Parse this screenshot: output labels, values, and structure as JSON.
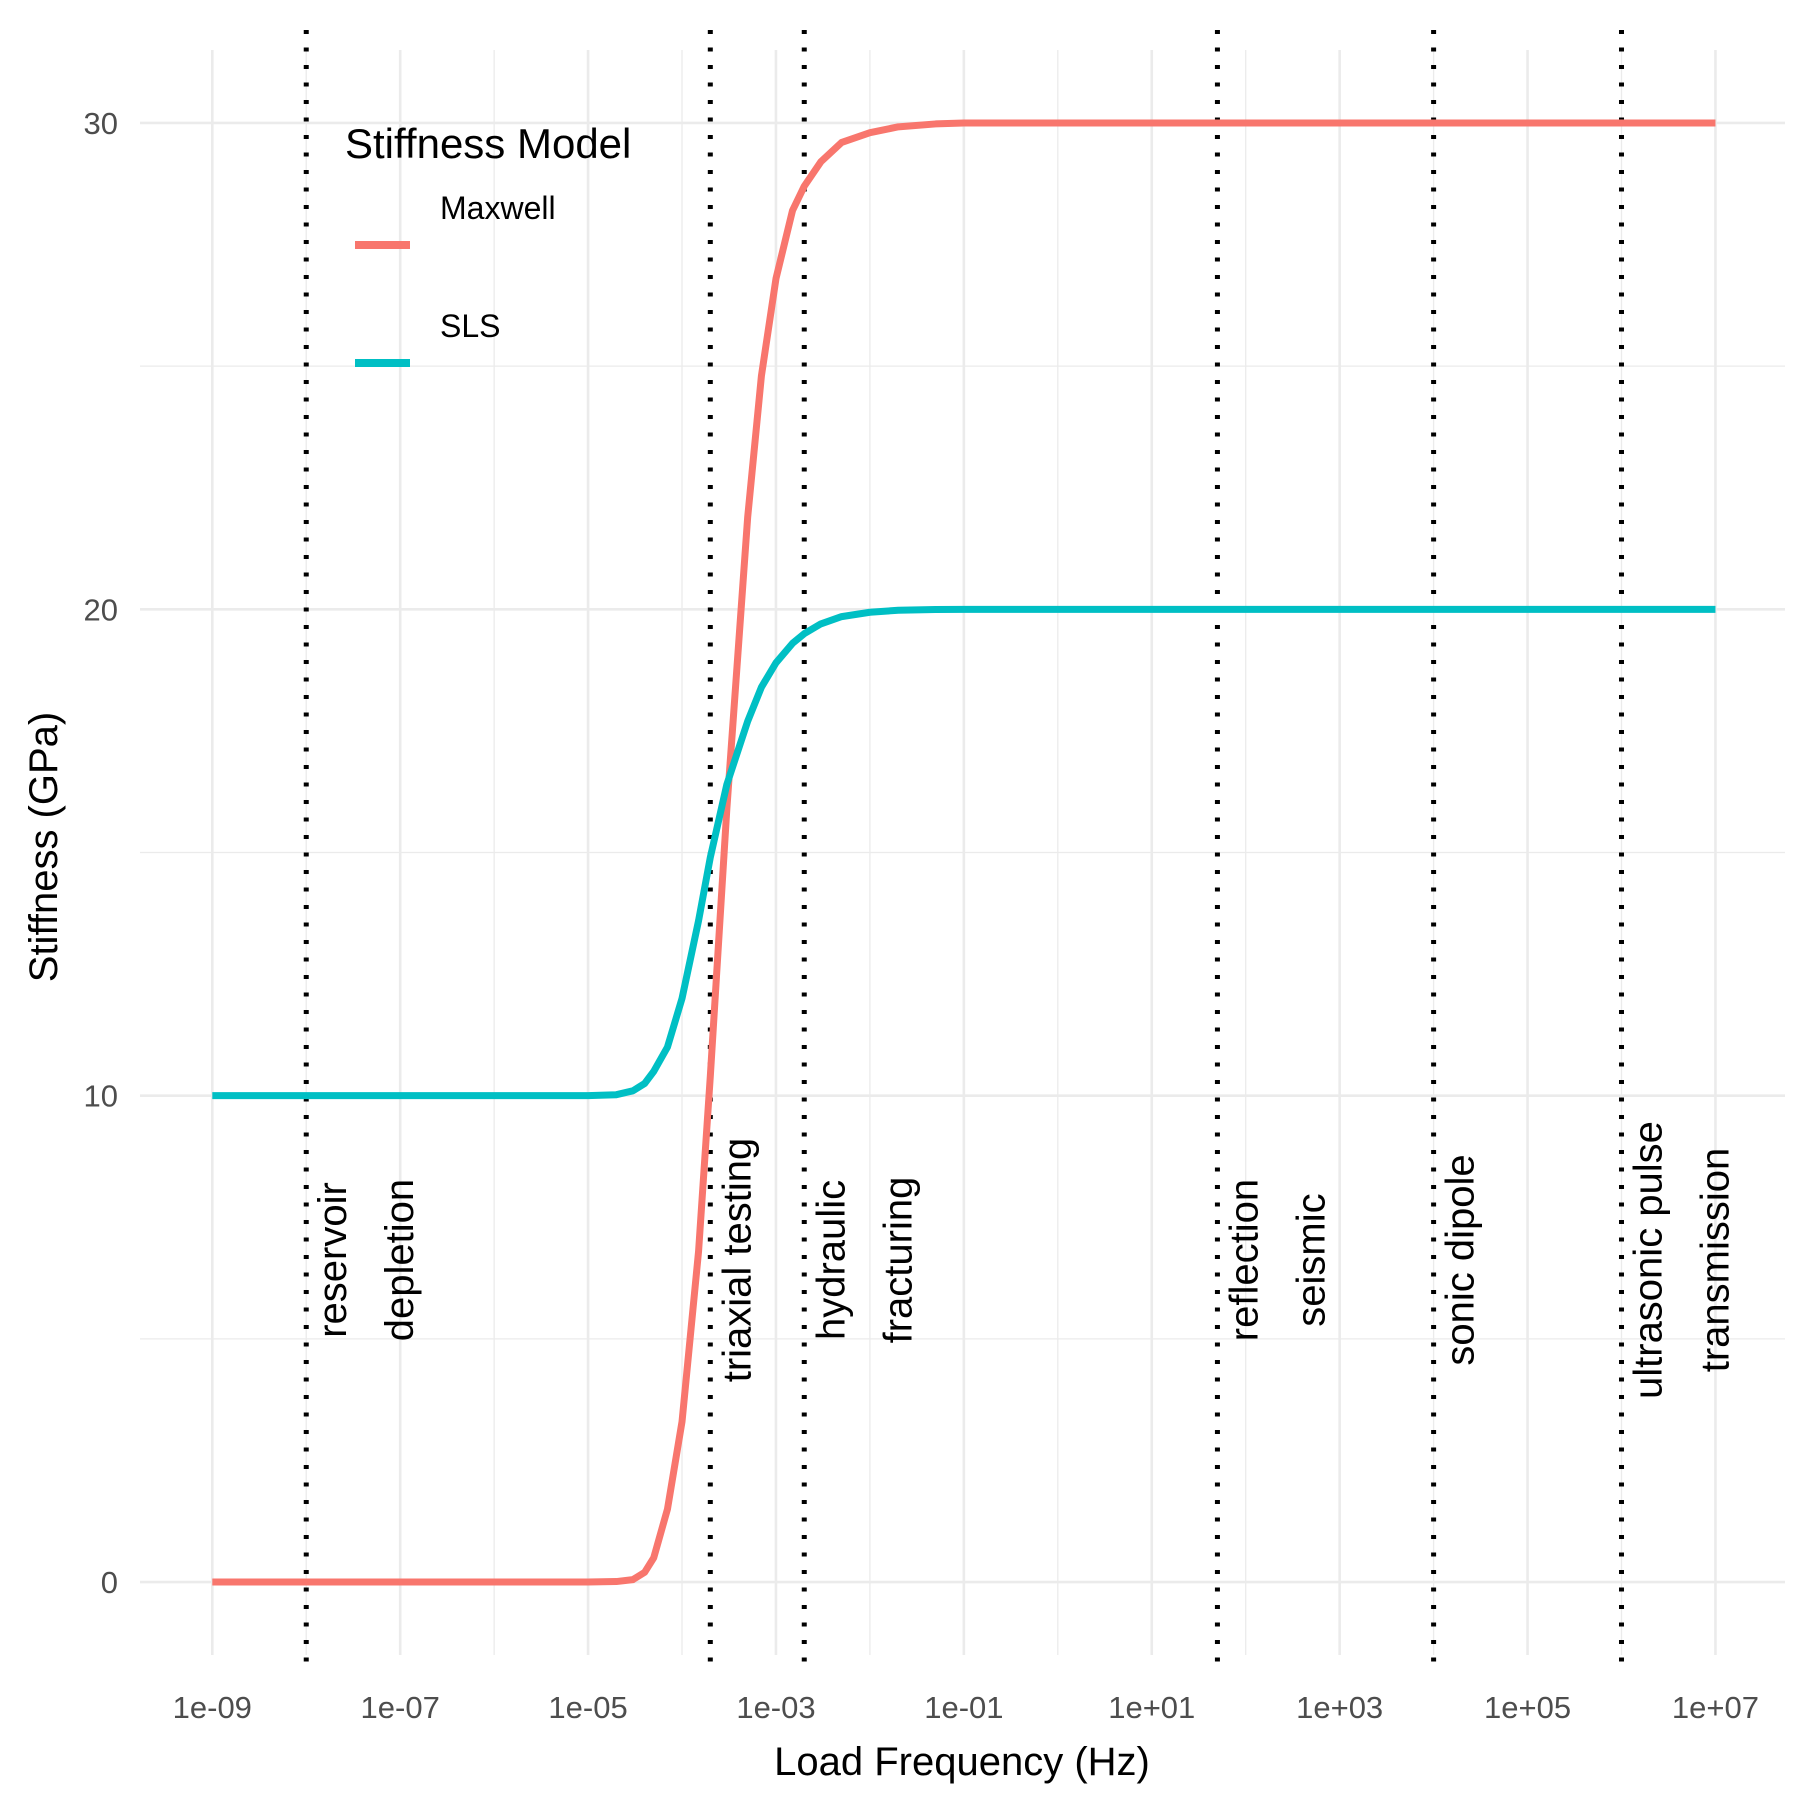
{
  "chart_data": {
    "type": "line",
    "title": "",
    "xlabel": "Load Frequency (Hz)",
    "ylabel": "Stiffness (GPa)",
    "x_scale": "log10",
    "x_ticks": [
      "1e-09",
      "1e-07",
      "1e-05",
      "1e-03",
      "1e-01",
      "1e+01",
      "1e+03",
      "1e+05",
      "1e+07"
    ],
    "x_tick_values": [
      1e-09,
      1e-07,
      1e-05,
      0.001,
      0.1,
      10.0,
      1000.0,
      100000.0,
      10000000.0
    ],
    "y_ticks": [
      "0",
      "10",
      "20",
      "30"
    ],
    "y_tick_values": [
      0,
      10,
      20,
      30
    ],
    "xlim": [
      1.7e-10,
      55000000.0
    ],
    "ylim": [
      -1.5,
      31.5
    ],
    "grid": true,
    "legend": {
      "title": "Stiffness Model",
      "position": "top-left"
    },
    "series": [
      {
        "name": "Maxwell",
        "color": "#F8766D",
        "x": [
          1e-09,
          1e-08,
          1e-07,
          1e-06,
          1e-05,
          2e-05,
          3e-05,
          4e-05,
          5e-05,
          7e-05,
          0.0001,
          0.00015,
          0.0002,
          0.0003,
          0.0005,
          0.0007,
          0.001,
          0.0015,
          0.002,
          0.003,
          0.005,
          0.01,
          0.02,
          0.05,
          0.1,
          1,
          10,
          100,
          1000.0,
          10000.0,
          100000.0,
          1000000.0,
          10000000.0
        ],
        "y": [
          0,
          0,
          0,
          0,
          0,
          0.01,
          0.05,
          0.2,
          0.5,
          1.5,
          3.3,
          6.8,
          10.4,
          15.9,
          21.9,
          24.8,
          26.8,
          28.2,
          28.7,
          29.2,
          29.6,
          29.8,
          29.92,
          29.98,
          30,
          30,
          30,
          30,
          30,
          30,
          30,
          30,
          30
        ]
      },
      {
        "name": "SLS",
        "color": "#00BFC4",
        "x": [
          1e-09,
          1e-08,
          1e-07,
          1e-06,
          1e-05,
          2e-05,
          3e-05,
          4e-05,
          5e-05,
          7e-05,
          0.0001,
          0.00015,
          0.0002,
          0.0003,
          0.0005,
          0.0007,
          0.001,
          0.0015,
          0.002,
          0.003,
          0.005,
          0.01,
          0.02,
          0.05,
          0.1,
          1,
          10,
          100,
          1000.0,
          10000.0,
          100000.0,
          1000000.0,
          10000000.0
        ],
        "y": [
          10,
          10,
          10,
          10,
          10,
          10.02,
          10.1,
          10.25,
          10.5,
          11,
          12,
          13.6,
          14.9,
          16.4,
          17.7,
          18.4,
          18.9,
          19.3,
          19.5,
          19.7,
          19.85,
          19.94,
          19.98,
          19.995,
          20,
          20,
          20,
          20,
          20,
          20,
          20,
          20,
          20
        ]
      }
    ],
    "vlines": [
      {
        "x": 1e-08,
        "label": [
          "reservoir",
          "depletion"
        ]
      },
      {
        "x": 0.0002,
        "label": [
          "triaxial testing"
        ]
      },
      {
        "x": 0.002,
        "label": [
          "hydraulic",
          "fracturing"
        ]
      },
      {
        "x": 50,
        "label": [
          "reflection",
          "seismic"
        ]
      },
      {
        "x": 10000.0,
        "label": [
          "sonic dipole"
        ]
      },
      {
        "x": 1000000.0,
        "label": [
          "ultrasonic pulse",
          "transmission"
        ]
      }
    ]
  }
}
